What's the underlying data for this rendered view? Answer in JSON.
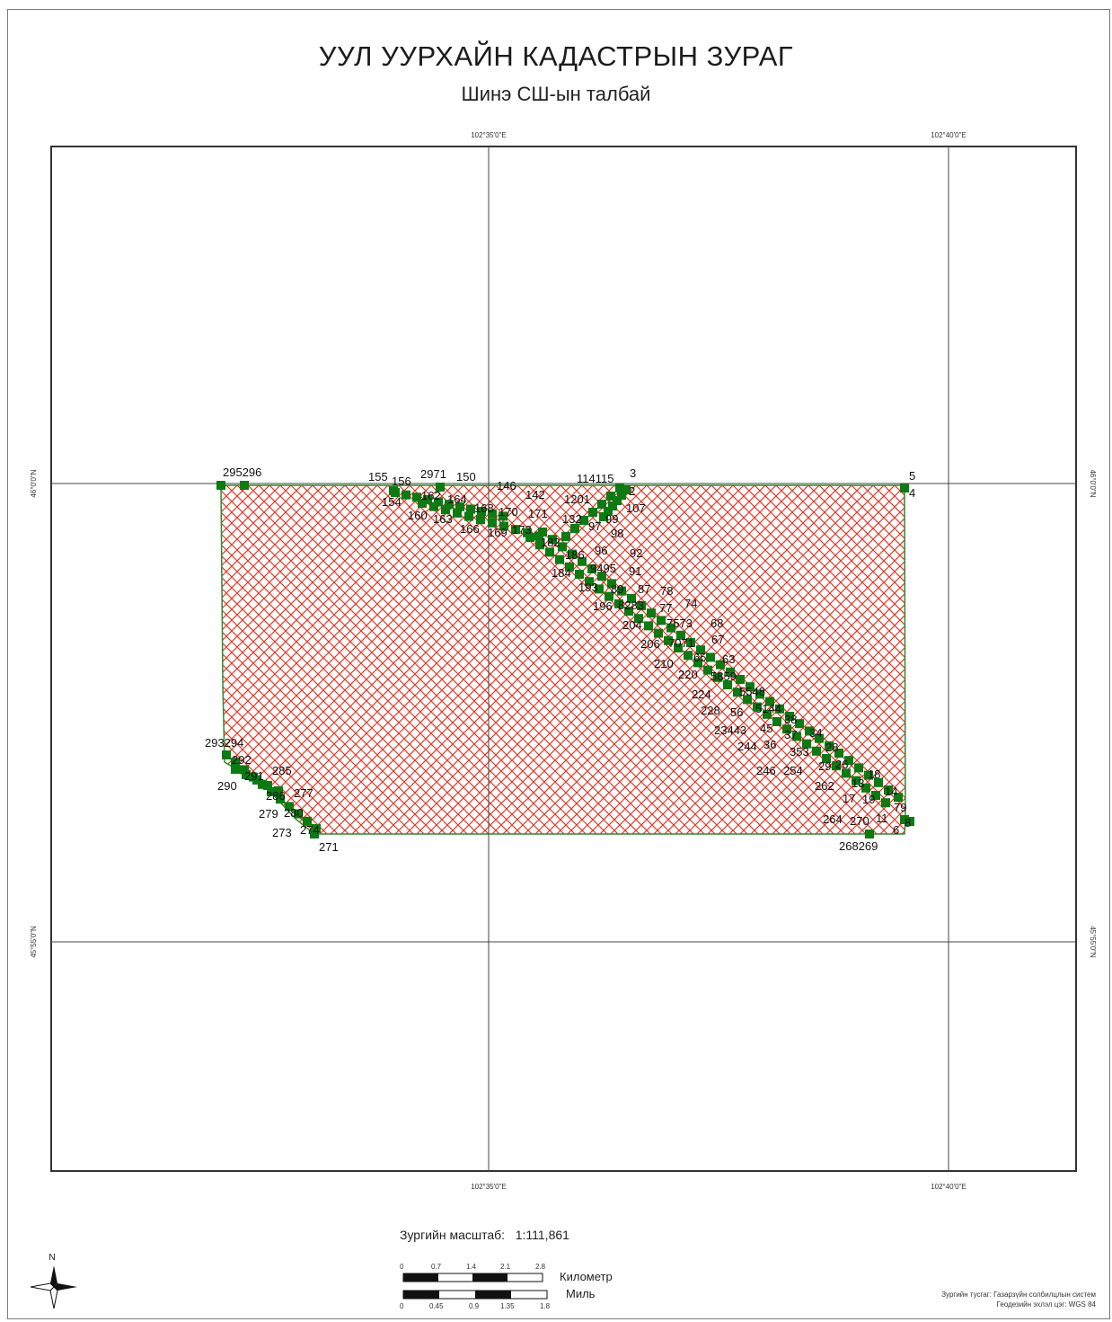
{
  "header": {
    "title": "УУЛ УУРХАЙН КАДАСТРЫН ЗУРАГ",
    "subtitle": "Шинэ СШ-ын талбай"
  },
  "graticule": {
    "lon_labels": [
      "102°35'0\"E",
      "102°40'0\"E"
    ],
    "lat_labels": [
      "46°0'0\"N",
      "45°55'0\"N"
    ]
  },
  "colors": {
    "hatch": "#e03a2a",
    "vertex": "#0d7a14",
    "boundary": "#2f8a2f",
    "frame": "#333333"
  },
  "vertex_labels": [
    "295296",
    "155",
    "156",
    "2971",
    "150",
    "154",
    "162",
    "164",
    "160",
    "163",
    "146",
    "168",
    "142",
    "170",
    "171",
    "166",
    "169",
    "173",
    "114115",
    "3",
    "2",
    "1201",
    "107",
    "5",
    "4",
    "132",
    "97",
    "99",
    "98",
    "182",
    "186",
    "96",
    "92",
    "184",
    "9495",
    "91",
    "193",
    "89",
    "87",
    "78",
    "196",
    "8283",
    "77",
    "74",
    "204",
    "7573",
    "68",
    "206",
    "7071",
    "67",
    "210",
    "65",
    "63",
    "220",
    "5859",
    "224",
    "5548",
    "228",
    "56",
    "5144",
    "38",
    "23443",
    "45",
    "37",
    "34",
    "244",
    "36",
    "353",
    "28",
    "246",
    "254",
    "29",
    "26",
    "262",
    "13",
    "18",
    "17",
    "19",
    "14",
    "79",
    "264",
    "270",
    "11",
    "6",
    "8",
    "268269",
    "293294",
    "292",
    "285",
    "291",
    "290",
    "286",
    "277",
    "279",
    "280",
    "273",
    "274",
    "271"
  ],
  "legend": {
    "scale_label": "Зургийн масштаб:",
    "scale_value": "1:111,861",
    "km_ticks": [
      "0",
      "0.7",
      "1.4",
      "2.1",
      "2.8"
    ],
    "km_unit": "Километр",
    "mi_ticks": [
      "0",
      "0.45",
      "0.9",
      "1.35",
      "1.8"
    ],
    "mi_unit": "Миль",
    "north_label": "N"
  },
  "credits": {
    "line1": "Зургийн тусгаг: Газарзүйн солбилцлын систем",
    "line2": "Геодезийн эхлэл цэг: WGS 84"
  }
}
